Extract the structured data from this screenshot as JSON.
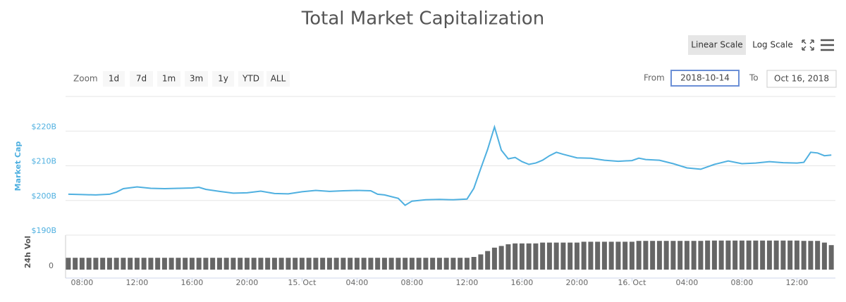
{
  "controls": {
    "linear": "Linear Scale",
    "log": "Log Scale",
    "zoom": "Zoom",
    "ranges": [
      "1d",
      "7d",
      "1m",
      "3m",
      "1y",
      "YTD",
      "ALL"
    ],
    "from": "From",
    "from_value": "2018-10-14",
    "to": "To",
    "to_value": "Oct 16, 2018"
  },
  "chart_data": [
    {
      "type": "line",
      "title": "Total Market Capitalization",
      "y_label": "Market Cap",
      "color": "#4fb0e0",
      "x": [
        7,
        8,
        9,
        10,
        10.5,
        11,
        12,
        13,
        14,
        15,
        16,
        16.5,
        17,
        18,
        19,
        20,
        21,
        22,
        23,
        24,
        25,
        26,
        27,
        28,
        29,
        29.5,
        30,
        31,
        31.5,
        32,
        33,
        34,
        35,
        36,
        36.5,
        37,
        37.5,
        38,
        38.5,
        39,
        39.5,
        40,
        40.5,
        41,
        41.5,
        42,
        42.5,
        43,
        44,
        45,
        46,
        47,
        48,
        48.5,
        49,
        50,
        51,
        52,
        53,
        54,
        55,
        56,
        57,
        58,
        59,
        60,
        60.5,
        61,
        61.5,
        62,
        62.5
      ],
      "values": [
        201.8,
        201.7,
        201.6,
        201.8,
        202.4,
        203.4,
        203.9,
        203.5,
        203.4,
        203.5,
        203.6,
        203.8,
        203.2,
        202.6,
        202.1,
        202.2,
        202.7,
        202.0,
        201.9,
        202.5,
        202.9,
        202.6,
        202.8,
        202.9,
        202.8,
        201.8,
        201.6,
        200.6,
        198.6,
        199.8,
        200.2,
        200.3,
        200.2,
        200.4,
        203.5,
        209.2,
        214.7,
        221.2,
        214.5,
        212.0,
        212.4,
        211.2,
        210.4,
        210.8,
        211.6,
        212.9,
        213.9,
        213.3,
        212.3,
        212.2,
        211.6,
        211.3,
        211.5,
        212.2,
        211.8,
        211.6,
        210.6,
        209.4,
        209.0,
        210.4,
        211.4,
        210.6,
        210.8,
        211.2,
        210.9,
        210.8,
        211.0,
        213.9,
        213.7,
        212.9,
        213.1
      ],
      "xlim": [
        6.8,
        62.8
      ],
      "ylim": [
        190,
        230
      ],
      "yticks": [
        {
          "value": 190,
          "label": "$190B"
        },
        {
          "value": 200,
          "label": "$200B"
        },
        {
          "value": 210,
          "label": "$210B"
        },
        {
          "value": 220,
          "label": "$220B"
        }
      ],
      "grid": true
    },
    {
      "type": "bar",
      "y_label": "24h Vol",
      "color": "#666666",
      "x": [
        7,
        7.5,
        8,
        8.5,
        9,
        9.5,
        10,
        10.5,
        11,
        11.5,
        12,
        12.5,
        13,
        13.5,
        14,
        14.5,
        15,
        15.5,
        16,
        16.5,
        17,
        17.5,
        18,
        18.5,
        19,
        19.5,
        20,
        20.5,
        21,
        21.5,
        22,
        22.5,
        23,
        23.5,
        24,
        24.5,
        25,
        25.5,
        26,
        26.5,
        27,
        27.5,
        28,
        28.5,
        29,
        29.5,
        30,
        30.5,
        31,
        31.5,
        32,
        32.5,
        33,
        33.5,
        34,
        34.5,
        35,
        35.5,
        36,
        36.5,
        37,
        37.5,
        38,
        38.5,
        39,
        39.5,
        40,
        40.5,
        41,
        41.5,
        42,
        42.5,
        43,
        43.5,
        44,
        44.5,
        45,
        45.5,
        46,
        46.5,
        47,
        47.5,
        48,
        48.5,
        49,
        49.5,
        50,
        50.5,
        51,
        51.5,
        52,
        52.5,
        53,
        53.5,
        54,
        54.5,
        55,
        55.5,
        56,
        56.5,
        57,
        57.5,
        58,
        58.5,
        59,
        59.5,
        60,
        60.5,
        61,
        61.5,
        62,
        62.5
      ],
      "values": [
        7,
        7,
        7,
        7,
        7,
        7,
        7,
        7,
        7,
        7,
        7,
        7,
        7,
        7,
        7,
        7,
        7,
        7,
        7,
        7,
        7,
        7,
        7,
        7,
        7,
        7,
        7,
        7,
        7,
        7,
        7,
        7,
        7,
        7,
        7,
        7,
        7,
        7,
        7,
        7,
        7,
        7,
        7,
        7,
        7,
        7,
        7,
        7,
        7,
        7,
        7,
        7,
        7,
        7,
        7,
        7,
        7,
        7,
        7,
        7.5,
        9,
        11,
        13,
        14,
        15,
        15.5,
        15.5,
        15.5,
        15.5,
        16,
        16,
        16,
        16,
        16,
        16,
        16.5,
        16.5,
        16.5,
        16.5,
        16.5,
        16.5,
        16.5,
        16.5,
        17,
        17,
        17,
        17,
        17,
        17,
        17,
        17,
        17,
        17,
        17.2,
        17.2,
        17.2,
        17.2,
        17.2,
        17.2,
        17.2,
        17.2,
        17.2,
        17.2,
        17.2,
        17.2,
        17.2,
        17.2,
        17,
        17,
        17,
        16,
        14.5
      ],
      "xlim": [
        6.8,
        62.8
      ],
      "ylim": [
        0,
        20
      ],
      "yticks": [
        0
      ],
      "xticks": [
        {
          "value": 8,
          "label": "08:00"
        },
        {
          "value": 12,
          "label": "12:00"
        },
        {
          "value": 16,
          "label": "16:00"
        },
        {
          "value": 20,
          "label": "20:00"
        },
        {
          "value": 24,
          "label": "15. Oct"
        },
        {
          "value": 28,
          "label": "04:00"
        },
        {
          "value": 32,
          "label": "08:00"
        },
        {
          "value": 36,
          "label": "12:00"
        },
        {
          "value": 40,
          "label": "16:00"
        },
        {
          "value": 44,
          "label": "20:00"
        },
        {
          "value": 48,
          "label": "16. Oct"
        },
        {
          "value": 52,
          "label": "04:00"
        },
        {
          "value": 56,
          "label": "08:00"
        },
        {
          "value": 60,
          "label": "12:00"
        }
      ]
    }
  ]
}
